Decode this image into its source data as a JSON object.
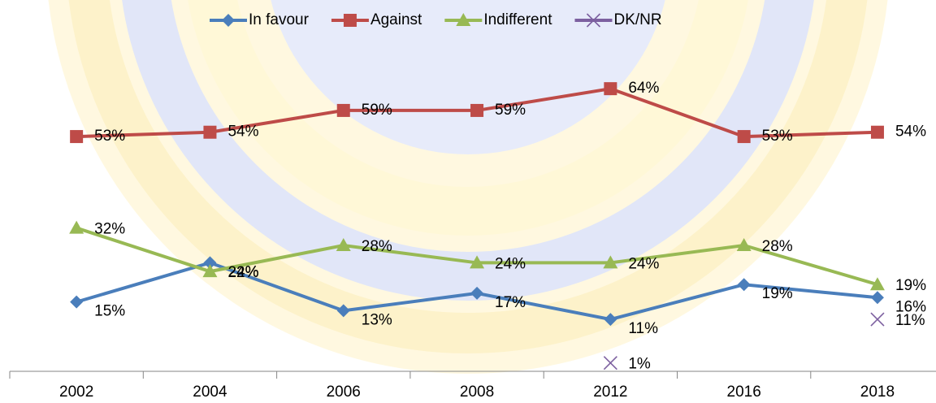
{
  "chart_data": {
    "type": "line",
    "categories": [
      "2002",
      "2004",
      "2006",
      "2008",
      "2012",
      "2016",
      "2018"
    ],
    "series": [
      {
        "name": "In favour",
        "color": "#4a7ebb",
        "marker": "diamond",
        "values": [
          15,
          24,
          13,
          17,
          11,
          19,
          16
        ],
        "value_labels": [
          "15%",
          "24%",
          "13%",
          "17%",
          "11%",
          "19%",
          "16%"
        ]
      },
      {
        "name": "Against",
        "color": "#be4b48",
        "marker": "square",
        "values": [
          53,
          54,
          59,
          59,
          64,
          53,
          54
        ],
        "value_labels": [
          "53%",
          "54%",
          "59%",
          "59%",
          "64%",
          "53%",
          "54%"
        ]
      },
      {
        "name": "Indifferent",
        "color": "#98b954",
        "marker": "triangle",
        "values": [
          32,
          22,
          28,
          24,
          24,
          28,
          19
        ],
        "value_labels": [
          "32%",
          "22%",
          "28%",
          "24%",
          "24%",
          "28%",
          "19%"
        ]
      },
      {
        "name": "DK/NR",
        "color": "#7d60a0",
        "marker": "x",
        "values": [
          null,
          null,
          null,
          null,
          1,
          null,
          11
        ],
        "value_labels": [
          null,
          null,
          null,
          null,
          "1%",
          null,
          "11%"
        ]
      }
    ],
    "ylim": [
      0,
      70
    ],
    "legend": "top"
  }
}
